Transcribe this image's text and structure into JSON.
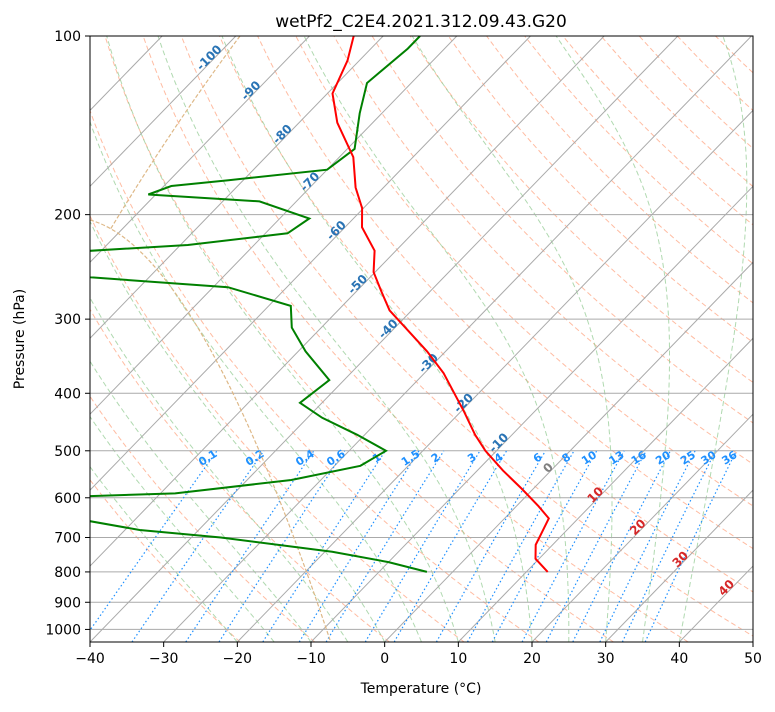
{
  "chart_data": {
    "type": "skew-t",
    "title": "wetPf2_C2E4.2021.312.09.43.G20",
    "xlabel": "Temperature (°C)",
    "ylabel": "Pressure (hPa)",
    "xlim": [
      -40,
      50
    ],
    "ylim": [
      1050,
      100
    ],
    "y_scale": "log",
    "grid": true,
    "x_ticks": [
      "−40",
      "−30",
      "−20",
      "−10",
      "0",
      "10",
      "20",
      "30",
      "40",
      "50"
    ],
    "x_tick_values": [
      -40,
      -30,
      -20,
      -10,
      0,
      10,
      20,
      30,
      40,
      50
    ],
    "y_ticks": [
      "100",
      "200",
      "300",
      "400",
      "500",
      "600",
      "700",
      "800",
      "900",
      "1000"
    ],
    "y_tick_values": [
      100,
      200,
      300,
      400,
      500,
      600,
      700,
      800,
      900,
      1000
    ],
    "colors": {
      "temperature": "#ff0000",
      "dewpoint": "#008000",
      "isotherm": "#aaaaaa",
      "dry_adiabat": "#ffa07a",
      "moist_adiabat": "#8fc98f",
      "mixing_ratio": "#1e90ff",
      "ghost_line": "#deb887"
    },
    "temperature_profile": [
      {
        "p": 800,
        "t": 12.9
      },
      {
        "p": 760,
        "t": 9.5
      },
      {
        "p": 720,
        "t": 7.7
      },
      {
        "p": 690,
        "t": 7.0
      },
      {
        "p": 650,
        "t": 6.0
      },
      {
        "p": 620,
        "t": 3.0
      },
      {
        "p": 580,
        "t": -1.5
      },
      {
        "p": 540,
        "t": -6.5
      },
      {
        "p": 500,
        "t": -11.5
      },
      {
        "p": 470,
        "t": -15.0
      },
      {
        "p": 430,
        "t": -19.5
      },
      {
        "p": 400,
        "t": -23.3
      },
      {
        "p": 370,
        "t": -27.4
      },
      {
        "p": 340,
        "t": -32.5
      },
      {
        "p": 310,
        "t": -38.6
      },
      {
        "p": 290,
        "t": -43.0
      },
      {
        "p": 270,
        "t": -46.5
      },
      {
        "p": 250,
        "t": -50.2
      },
      {
        "p": 230,
        "t": -52.9
      },
      {
        "p": 210,
        "t": -57.7
      },
      {
        "p": 195,
        "t": -60.2
      },
      {
        "p": 180,
        "t": -63.8
      },
      {
        "p": 160,
        "t": -68.1
      },
      {
        "p": 140,
        "t": -74.8
      },
      {
        "p": 125,
        "t": -79.3
      },
      {
        "p": 110,
        "t": -81.6
      },
      {
        "p": 100,
        "t": -84.0
      }
    ],
    "dewpoint_profile": [
      {
        "p": 800,
        "t": -3.5
      },
      {
        "p": 770,
        "t": -10.0
      },
      {
        "p": 740,
        "t": -19.0
      },
      {
        "p": 700,
        "t": -36.0
      },
      {
        "p": 680,
        "t": -48.0
      },
      {
        "p": 605,
        "t": -75.0
      },
      {
        "p": 590,
        "t": -48.0
      },
      {
        "p": 560,
        "t": -34.0
      },
      {
        "p": 530,
        "t": -26.5
      },
      {
        "p": 500,
        "t": -25.0
      },
      {
        "p": 470,
        "t": -31.0
      },
      {
        "p": 440,
        "t": -38.0
      },
      {
        "p": 415,
        "t": -43.0
      },
      {
        "p": 380,
        "t": -42.0
      },
      {
        "p": 340,
        "t": -49.0
      },
      {
        "p": 310,
        "t": -54.0
      },
      {
        "p": 285,
        "t": -57.0
      },
      {
        "p": 265,
        "t": -68.0
      },
      {
        "p": 255,
        "t": -88.0
      },
      {
        "p": 250,
        "t": -95.0
      },
      {
        "p": 232,
        "t": -96.0
      },
      {
        "p": 225,
        "t": -79.0
      },
      {
        "p": 215,
        "t": -67.0
      },
      {
        "p": 203,
        "t": -66.0
      },
      {
        "p": 190,
        "t": -75.0
      },
      {
        "p": 185,
        "t": -91.0
      },
      {
        "p": 179,
        "t": -89.0
      },
      {
        "p": 175,
        "t": -82.0
      },
      {
        "p": 168,
        "t": -70.0
      },
      {
        "p": 155,
        "t": -69.0
      },
      {
        "p": 135,
        "t": -73.0
      },
      {
        "p": 120,
        "t": -76.0
      },
      {
        "p": 105,
        "t": -75.0
      },
      {
        "p": 100,
        "t": -75.0
      }
    ],
    "isotherm_labels": [
      "-100",
      "-90",
      "-80",
      "-70",
      "-60",
      "-50",
      "-40",
      "-30",
      "-20",
      "-10"
    ],
    "isotherm_label_values": [
      -100,
      -90,
      -80,
      -70,
      -60,
      -50,
      -40,
      -30,
      -20,
      -10
    ],
    "mixing_ratio_labels": [
      "0.1",
      "0.2",
      "0.4",
      "0.6",
      "1",
      "1.5",
      "2",
      "3",
      "4",
      "6",
      "8",
      "10",
      "13",
      "16",
      "20",
      "25",
      "30",
      "36"
    ],
    "mixing_ratio_values": [
      0.1,
      0.2,
      0.4,
      0.6,
      1,
      1.5,
      2,
      3,
      4,
      6,
      8,
      10,
      13,
      16,
      20,
      25,
      30,
      36
    ],
    "isotherm_lower_labels": [
      "0",
      "10",
      "20",
      "30",
      "40"
    ],
    "isotherm_lower_values": [
      0,
      10,
      20,
      30,
      40
    ]
  }
}
